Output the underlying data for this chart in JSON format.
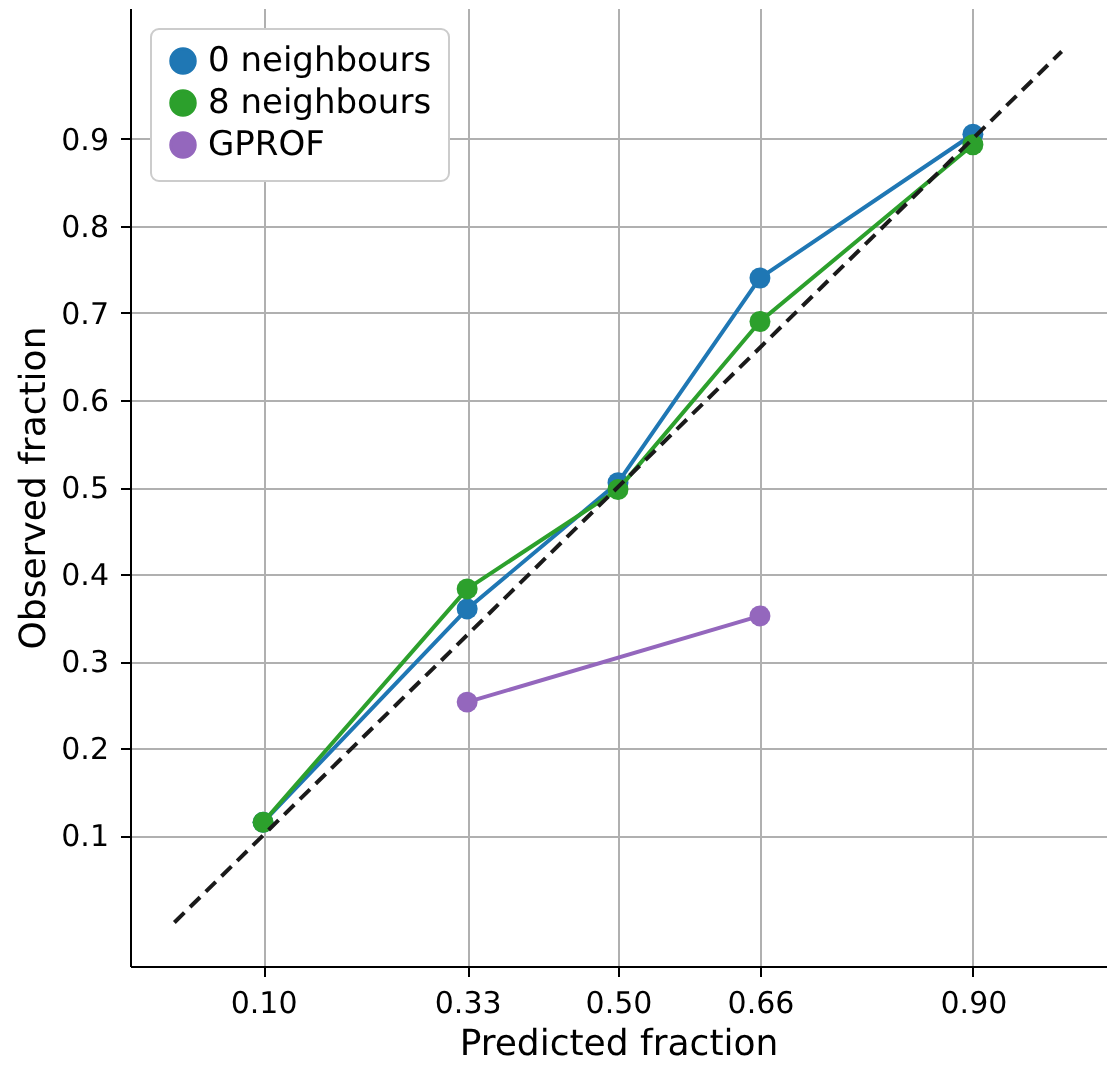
{
  "chart_data": {
    "type": "line",
    "xlabel": "Predicted fraction",
    "ylabel": "Observed fraction",
    "xlim": [
      -0.05,
      1.05
    ],
    "ylim": [
      -0.05,
      1.05
    ],
    "xticks": [
      {
        "value": 0.1,
        "label": "0.10"
      },
      {
        "value": 0.33,
        "label": "0.33"
      },
      {
        "value": 0.5,
        "label": "0.50"
      },
      {
        "value": 0.66,
        "label": "0.66"
      },
      {
        "value": 0.9,
        "label": "0.90"
      }
    ],
    "yticks": [
      0.1,
      0.2,
      0.3,
      0.4,
      0.5,
      0.6,
      0.7,
      0.8,
      0.9
    ],
    "grid": true,
    "legend": "top left",
    "marker": "circle",
    "series": [
      {
        "name": "0 neighbours",
        "color": "#1f77b4",
        "x": [
          0.1,
          0.33,
          0.5,
          0.66,
          0.9
        ],
        "values": [
          0.115,
          0.36,
          0.505,
          0.74,
          0.905
        ]
      },
      {
        "name": "8 neighbours",
        "color": "#2ca02c",
        "x": [
          0.1,
          0.33,
          0.5,
          0.66,
          0.9
        ],
        "values": [
          0.115,
          0.383,
          0.497,
          0.69,
          0.893
        ]
      },
      {
        "name": "GPROF",
        "color": "#9467bd",
        "x": [
          0.33,
          0.66
        ],
        "values": [
          0.253,
          0.352
        ]
      },
      {
        "color": "#1a1a1a",
        "x": [
          0,
          1
        ],
        "values": [
          0,
          1
        ],
        "marker": "none",
        "line_style": "dashed"
      }
    ]
  }
}
